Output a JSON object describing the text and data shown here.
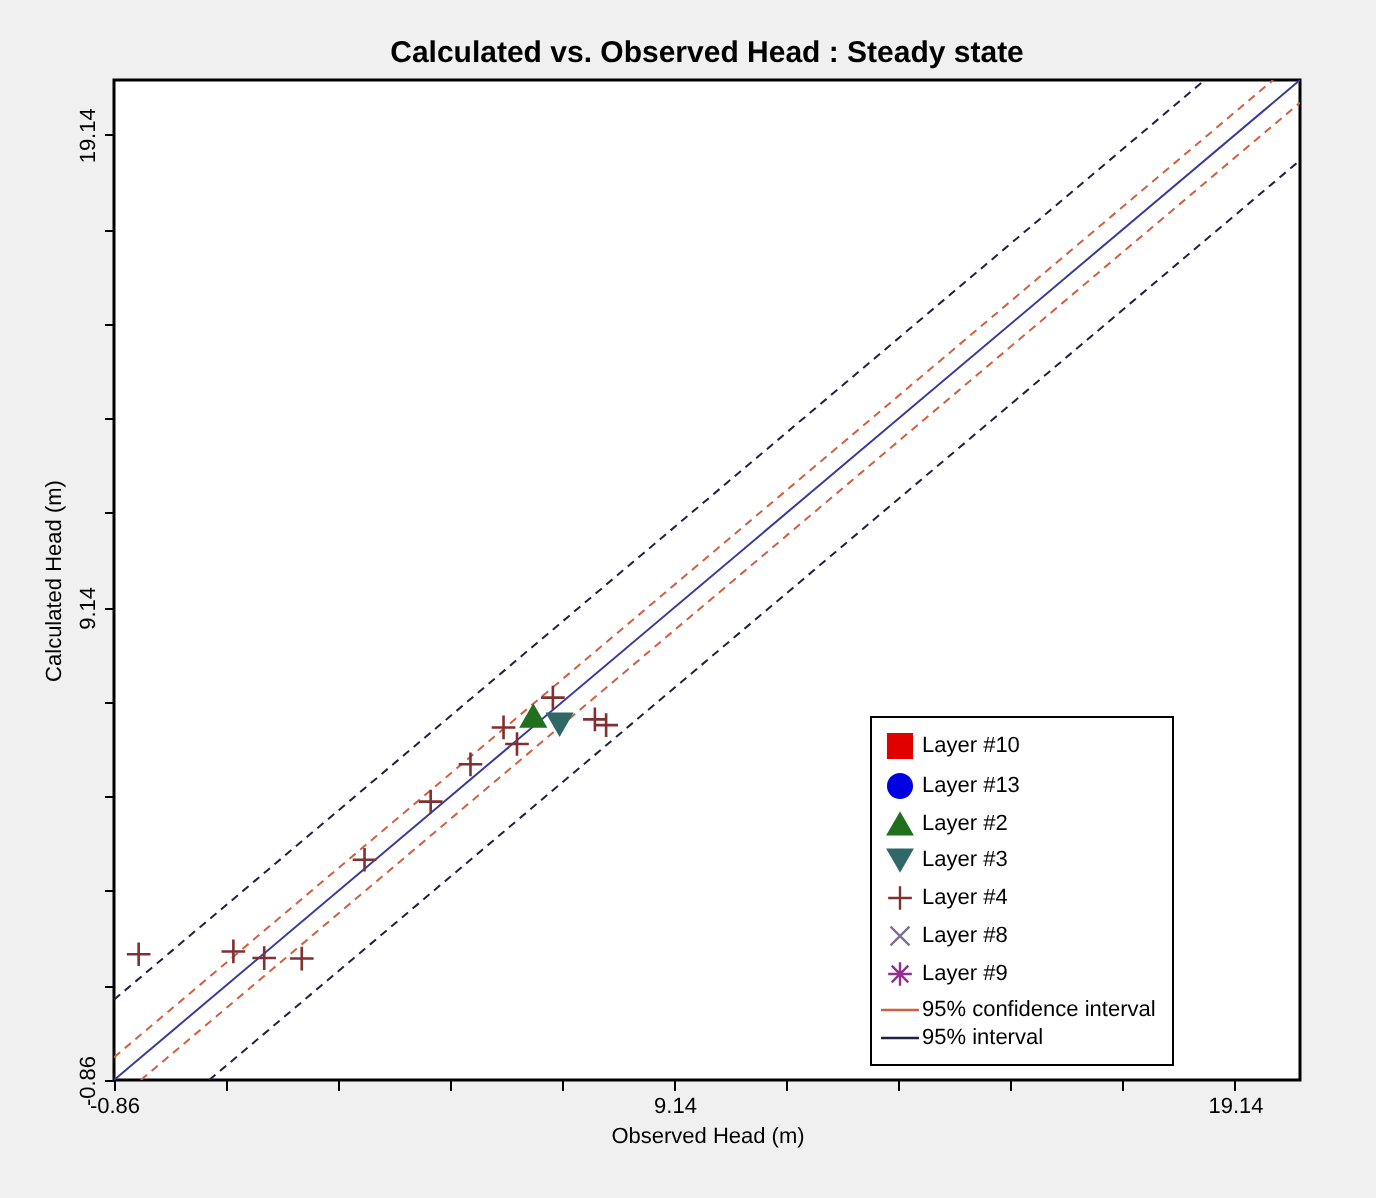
{
  "chart_data": {
    "type": "scatter",
    "title": "Calculated vs. Observed Head : Steady state",
    "xlabel": "Observed Head (m)",
    "ylabel": "Calculated Head (m)",
    "xlim": [
      -0.86,
      20.3
    ],
    "ylim": [
      -0.86,
      20.3
    ],
    "xticks": [
      -0.86,
      {
        "value": 1.14,
        "label": null
      },
      {
        "value": 3.14,
        "label": null
      },
      {
        "value": 5.14,
        "label": null
      },
      {
        "value": 7.14,
        "label": null
      },
      9.14,
      {
        "value": 11.14,
        "label": null
      },
      {
        "value": 13.14,
        "label": null
      },
      {
        "value": 15.14,
        "label": null
      },
      {
        "value": 17.14,
        "label": null
      },
      19.14
    ],
    "yticks": [
      -0.86,
      {
        "value": 1.14,
        "label": null
      },
      {
        "value": 3.14,
        "label": null
      },
      {
        "value": 5.14,
        "label": null
      },
      {
        "value": 7.14,
        "label": null
      },
      9.14,
      {
        "value": 11.14,
        "label": null
      },
      {
        "value": 13.14,
        "label": null
      },
      {
        "value": 15.14,
        "label": null
      },
      {
        "value": 17.14,
        "label": null
      },
      19.14
    ],
    "legend": "bottom right",
    "grid": false,
    "series": [
      {
        "name": "Layer #10",
        "color": "#e00000",
        "marker": "square"
      },
      {
        "name": "Layer #13",
        "color": "#0000e0",
        "marker": "circle"
      },
      {
        "name": "Layer #2",
        "color": "#207020",
        "marker": "triangle",
        "x": [
          6.62
        ],
        "values": [
          6.84
        ]
      },
      {
        "name": "Layer #3",
        "color": "#306868",
        "marker": "triangle-down",
        "x": [
          7.09
        ],
        "values": [
          6.67
        ]
      },
      {
        "name": "Layer #4",
        "color": "#803030",
        "marker": "plus",
        "x": [
          -0.42,
          1.27,
          1.82,
          2.49,
          3.61,
          4.79,
          5.5,
          6.09,
          6.33,
          6.97,
          7.72,
          7.92
        ],
        "values": [
          1.8,
          1.86,
          1.72,
          1.71,
          3.8,
          5.03,
          5.82,
          6.6,
          6.25,
          7.23,
          6.77,
          6.65
        ]
      },
      {
        "name": "Layer #8",
        "color": "#807090",
        "marker": "cross"
      },
      {
        "name": "Layer #9",
        "color": "#903090",
        "marker": "star"
      },
      {
        "type": "line",
        "color": "#3a3a9a",
        "line_style": "solid",
        "x": [
          -0.86,
          20.3
        ],
        "values": [
          -0.86,
          20.3
        ]
      },
      {
        "type": "line",
        "name": "95% confidence interval",
        "color": "#d06040",
        "line_style": "dashed",
        "x": [
          -0.86,
          19.82
        ],
        "values": [
          -0.38,
          20.3
        ]
      },
      {
        "type": "line",
        "color": "#d06040",
        "line_style": "dashed",
        "x": [
          -0.38,
          20.3
        ],
        "values": [
          -0.86,
          19.82
        ]
      },
      {
        "type": "line",
        "name": "95% interval",
        "color": "#202040",
        "line_style": "dashed",
        "x": [
          -0.86,
          18.6
        ],
        "values": [
          0.84,
          20.3
        ]
      },
      {
        "type": "line",
        "color": "#202040",
        "line_style": "dashed",
        "x": [
          0.84,
          20.3
        ],
        "values": [
          -0.86,
          18.6
        ]
      }
    ]
  }
}
